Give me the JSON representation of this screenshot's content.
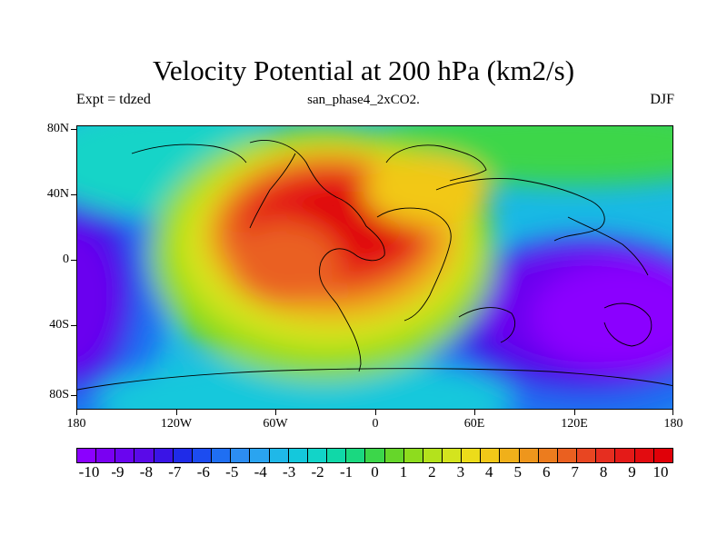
{
  "header": {
    "title": "Velocity Potential at 200 hPa (km2/s)",
    "subtitle": "san_phase4_2xCO2.",
    "left_label": "Expt = tdzed",
    "right_label": "DJF"
  },
  "map": {
    "lat_labels": [
      "80N",
      "40N",
      "0",
      "40S",
      "80S"
    ],
    "lon_labels": [
      "180",
      "120W",
      "60W",
      "0",
      "60E",
      "120E",
      "180"
    ]
  },
  "colorbar": {
    "labels": [
      "-10",
      "-9",
      "-8",
      "-7",
      "-6",
      "-5",
      "-4",
      "-3",
      "-2",
      "-1",
      "0",
      "1",
      "2",
      "3",
      "4",
      "5",
      "6",
      "7",
      "8",
      "9",
      "10"
    ],
    "colors": [
      "#8b00ff",
      "#7a00f2",
      "#6a05ef",
      "#5a0ae8",
      "#3a14e6",
      "#1f2be8",
      "#1c4cf0",
      "#1f6ff2",
      "#2c8df2",
      "#2aa4f0",
      "#1fb8e8",
      "#14c8dc",
      "#12d4c8",
      "#10d8a8",
      "#1ad880",
      "#3cd64a",
      "#66d62a",
      "#8edc1e",
      "#b4e21c",
      "#d4e41e",
      "#ecdc1a",
      "#f2c818",
      "#f0b01a",
      "#ee961c",
      "#ec7c1e",
      "#ea6020",
      "#e84622",
      "#e62e20",
      "#e41a18",
      "#e20c10",
      "#e00008"
    ]
  }
}
